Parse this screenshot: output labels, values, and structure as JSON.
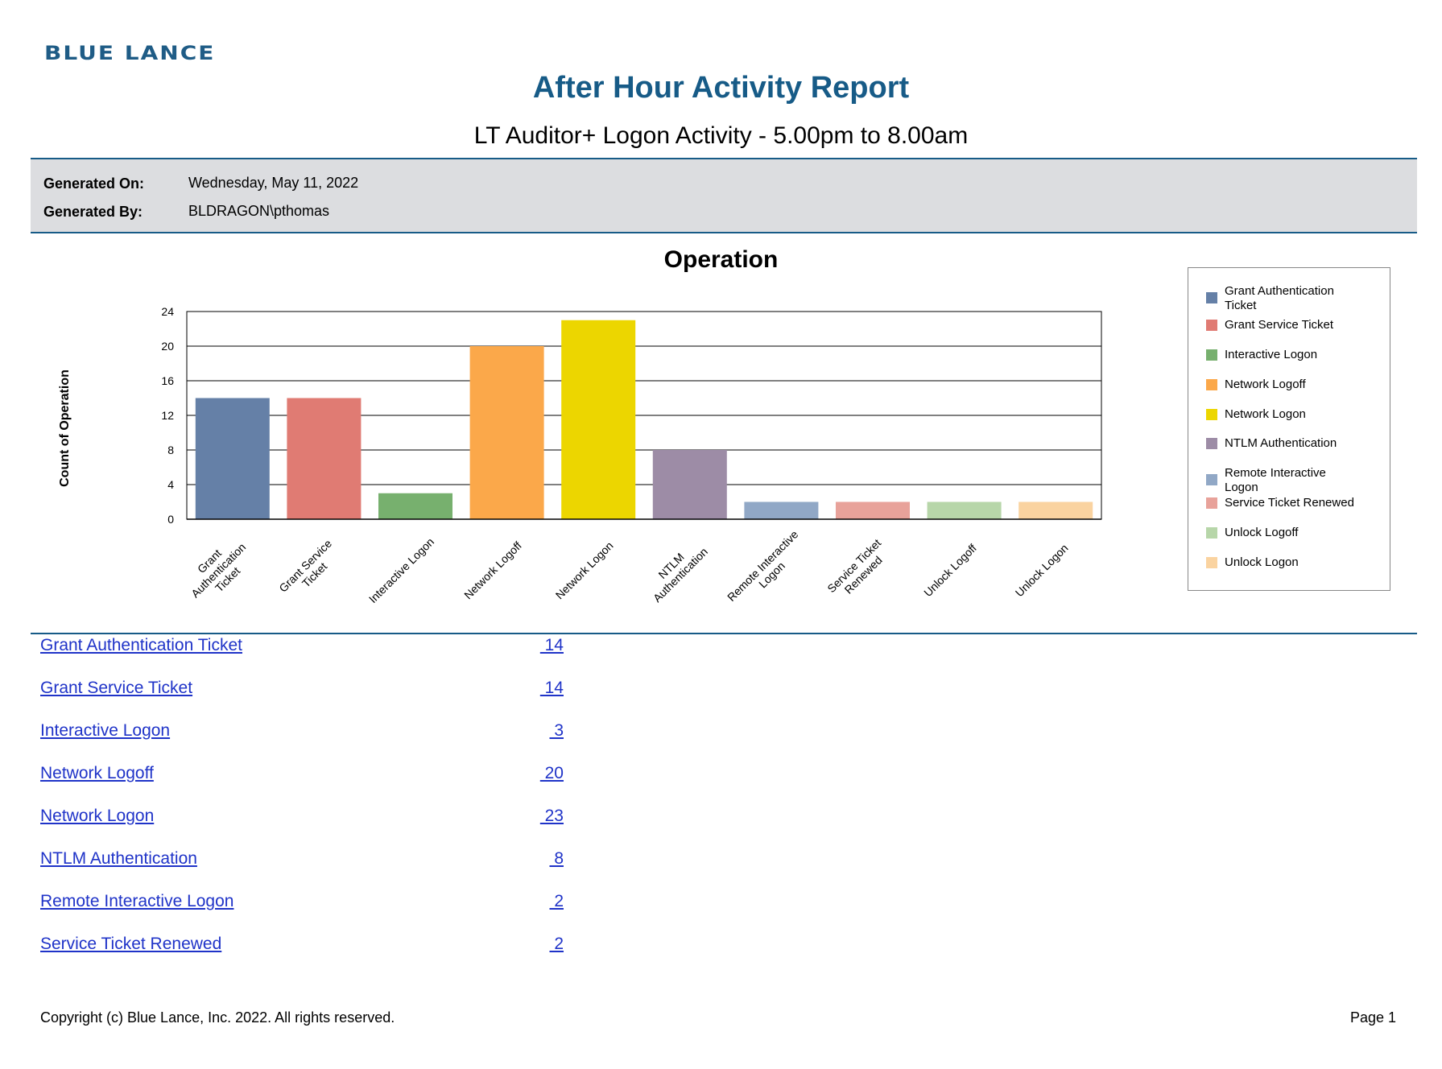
{
  "header": {
    "logo_text": "BLUE LANCE",
    "title": "After Hour Activity Report",
    "subtitle": "LT Auditor+ Logon Activity - 5.00pm to 8.00am"
  },
  "info": {
    "generated_on_label": "Generated On:",
    "generated_on_value": "Wednesday, May 11, 2022",
    "generated_by_label": "Generated By:",
    "generated_by_value": "BLDRAGON\\pthomas"
  },
  "colors": {
    "brand": "#175b87",
    "link": "#1f33c8",
    "band": "#dcdde0"
  },
  "chart_data": {
    "type": "bar",
    "title": "Operation",
    "xlabel": "",
    "ylabel": "Count of Operation",
    "ylim": [
      0,
      24
    ],
    "yticks": [
      0,
      4,
      8,
      12,
      16,
      20,
      24
    ],
    "grid": true,
    "legend_position": "right",
    "categories": [
      "Grant Authentication Ticket",
      "Grant Service Ticket",
      "Interactive Logon",
      "Network Logoff",
      "Network Logon",
      "NTLM Authentication",
      "Remote Interactive Logon",
      "Service Ticket Renewed",
      "Unlock Logoff",
      "Unlock Logon"
    ],
    "values": [
      14,
      14,
      3,
      20,
      23,
      8,
      2,
      2,
      2,
      2
    ],
    "colors": [
      "#6580a7",
      "#e07b73",
      "#77b06e",
      "#fba84a",
      "#ecd600",
      "#9d8ca6",
      "#91a8c6",
      "#e8a29a",
      "#b7d6a9",
      "#fad3a0"
    ]
  },
  "table": {
    "rows": [
      {
        "name": "Grant Authentication Ticket",
        "count": "14"
      },
      {
        "name": "Grant Service Ticket",
        "count": "14"
      },
      {
        "name": "Interactive Logon",
        "count": "3"
      },
      {
        "name": "Network Logoff",
        "count": "20"
      },
      {
        "name": "Network Logon",
        "count": "23"
      },
      {
        "name": "NTLM Authentication",
        "count": "8"
      },
      {
        "name": "Remote Interactive Logon",
        "count": "2"
      },
      {
        "name": "Service Ticket Renewed",
        "count": "2"
      }
    ]
  },
  "footer": {
    "copyright": "Copyright (c) Blue Lance, Inc. 2022. All rights reserved.",
    "page": "Page 1"
  }
}
